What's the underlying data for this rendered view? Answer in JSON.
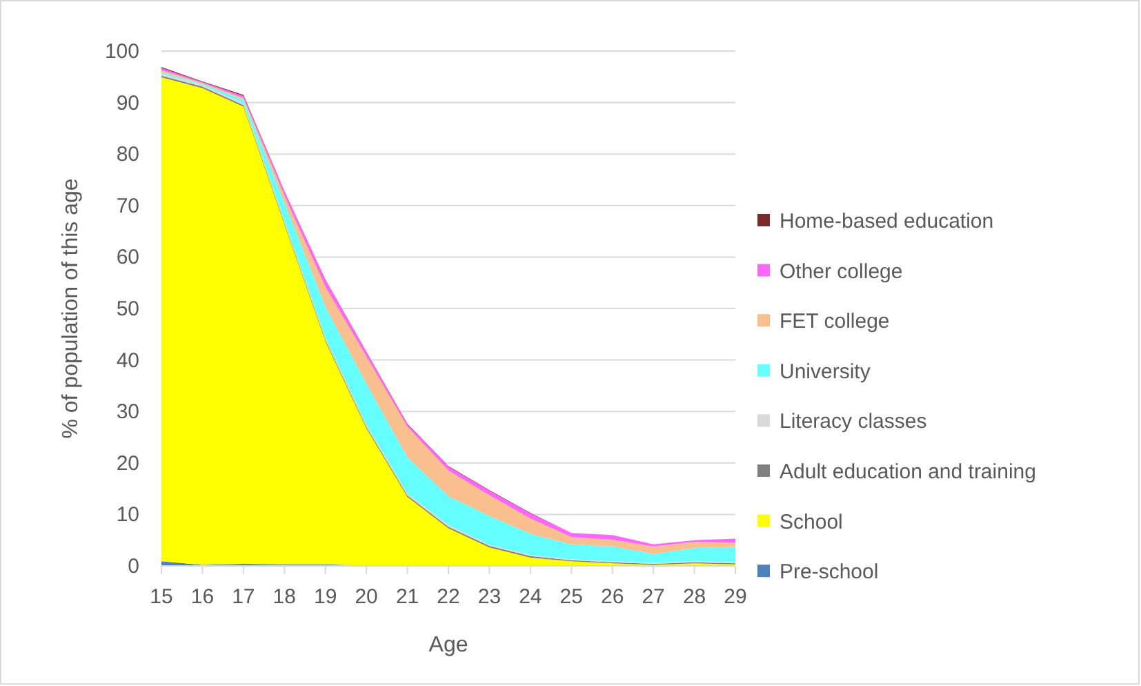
{
  "chart_data": {
    "type": "area",
    "stacked": true,
    "xlabel": "Age",
    "ylabel": "% of population of this age",
    "x": [
      15,
      16,
      17,
      18,
      19,
      20,
      21,
      22,
      23,
      24,
      25,
      26,
      27,
      28,
      29
    ],
    "xlim": [
      15,
      29
    ],
    "xticks": [
      15,
      16,
      17,
      18,
      19,
      20,
      21,
      22,
      23,
      24,
      25,
      26,
      27,
      28,
      29
    ],
    "ylim": [
      0,
      100
    ],
    "yticks": [
      0,
      10,
      20,
      30,
      40,
      50,
      60,
      70,
      80,
      90,
      100
    ],
    "grid": "y",
    "legend": "right",
    "series": [
      {
        "name": "Pre-school",
        "color": "#4f81bd",
        "values": [
          0.9,
          0.2,
          0.4,
          0.3,
          0.3,
          0.1,
          0,
          0,
          0,
          0,
          0,
          0,
          0,
          0,
          0
        ]
      },
      {
        "name": "School",
        "color": "#ffff00",
        "values": [
          94,
          92.6,
          88.8,
          66,
          43.3,
          26.6,
          13.4,
          7.3,
          3.6,
          1.6,
          0.9,
          0.5,
          0.2,
          0.5,
          0.3
        ]
      },
      {
        "name": "Adult education and training",
        "color": "#808080",
        "values": [
          0.3,
          0.3,
          0.3,
          0.3,
          0.3,
          0.3,
          0.3,
          0.3,
          0.3,
          0.3,
          0.2,
          0.2,
          0.2,
          0.2,
          0.2
        ]
      },
      {
        "name": "Literacy classes",
        "color": "#d9d9d9",
        "values": [
          0.4,
          0.3,
          0.3,
          0.3,
          0.3,
          0.3,
          0.3,
          0.3,
          0.2,
          0.2,
          0.2,
          0.2,
          0.2,
          0.2,
          0.2
        ]
      },
      {
        "name": "University",
        "color": "#66ffff",
        "values": [
          0.3,
          0.2,
          0.7,
          3.5,
          6,
          8,
          7,
          5.6,
          5.6,
          4.1,
          2.9,
          2.9,
          1.7,
          2.6,
          3
        ]
      },
      {
        "name": "FET college",
        "color": "#f9bf8f",
        "values": [
          0.4,
          0.2,
          0.4,
          1.5,
          4,
          5.3,
          6,
          5,
          4,
          3,
          1.4,
          1.3,
          1.5,
          1.2,
          0.8
        ]
      },
      {
        "name": "Other college",
        "color": "#ff66ff",
        "values": [
          0.4,
          0.2,
          0.4,
          0.8,
          1.3,
          0.9,
          0.5,
          0.8,
          0.9,
          1,
          0.8,
          0.9,
          0.4,
          0.3,
          0.8
        ]
      },
      {
        "name": "Home-based education",
        "color": "#7b2a2a",
        "values": [
          0.2,
          0.1,
          0.2,
          0.1,
          0.1,
          0.1,
          0.1,
          0.1,
          0.1,
          0.1,
          0,
          0,
          0,
          0,
          0
        ]
      }
    ]
  }
}
